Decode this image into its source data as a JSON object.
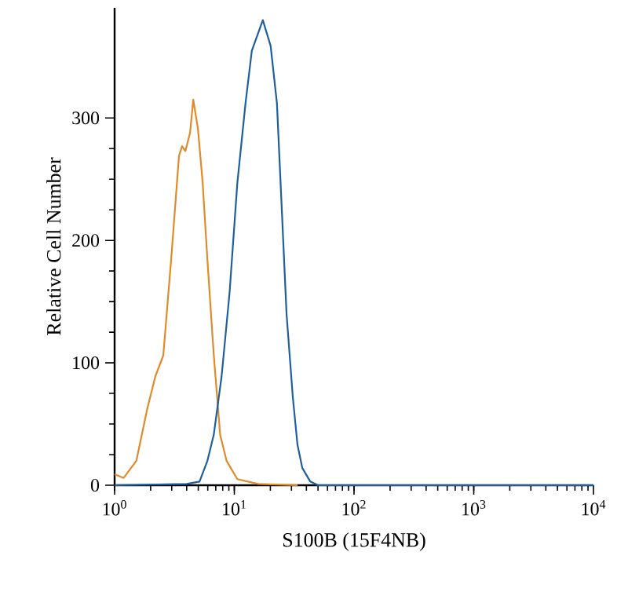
{
  "chart_data": {
    "type": "line",
    "xlabel": "S100B (15F4NB)",
    "ylabel": "Relative Cell Number",
    "log": "x",
    "marker": "none",
    "line_style": "solid",
    "xlim": [
      1,
      10000
    ],
    "ylim": [
      0,
      390
    ],
    "xticks": [
      {
        "value": 1,
        "label": "10$^{0}$"
      },
      {
        "value": 10,
        "label": "10$^{1}$"
      },
      {
        "value": 100,
        "label": "10$^{2}$"
      },
      {
        "value": 1000,
        "label": "10$^{3}$"
      },
      {
        "value": 10000,
        "label": "10$^{4}$"
      }
    ],
    "yticks": [
      0,
      100,
      200,
      300
    ],
    "series": [
      {
        "color": "#e08a2a",
        "x": [
          1.0,
          1.19,
          1.52,
          1.88,
          2.19,
          2.55,
          2.96,
          3.45,
          3.66,
          3.9,
          4.27,
          4.54,
          4.97,
          5.44,
          5.97,
          6.74,
          7.62,
          8.61,
          10.6,
          15.8,
          33.7
        ],
        "values": [
          9,
          6,
          20,
          63,
          89,
          106,
          183,
          269,
          277,
          273,
          288,
          315,
          291,
          247,
          183,
          106,
          41,
          20,
          5,
          1,
          0
        ]
      },
      {
        "color": "#1f5f9e",
        "x": [
          1.0,
          4.0,
          5.12,
          5.96,
          6.73,
          7.83,
          9.12,
          10.6,
          12.4,
          14.0,
          17.3,
          20.1,
          22.7,
          24.9,
          27.3,
          30.8,
          33.7,
          37.0,
          43.1,
          50.1,
          10000
        ],
        "values": [
          0,
          1,
          3,
          20,
          41,
          89,
          157,
          247,
          312,
          355,
          380,
          359,
          312,
          226,
          140,
          72,
          33,
          14,
          3,
          0,
          0
        ]
      }
    ]
  }
}
